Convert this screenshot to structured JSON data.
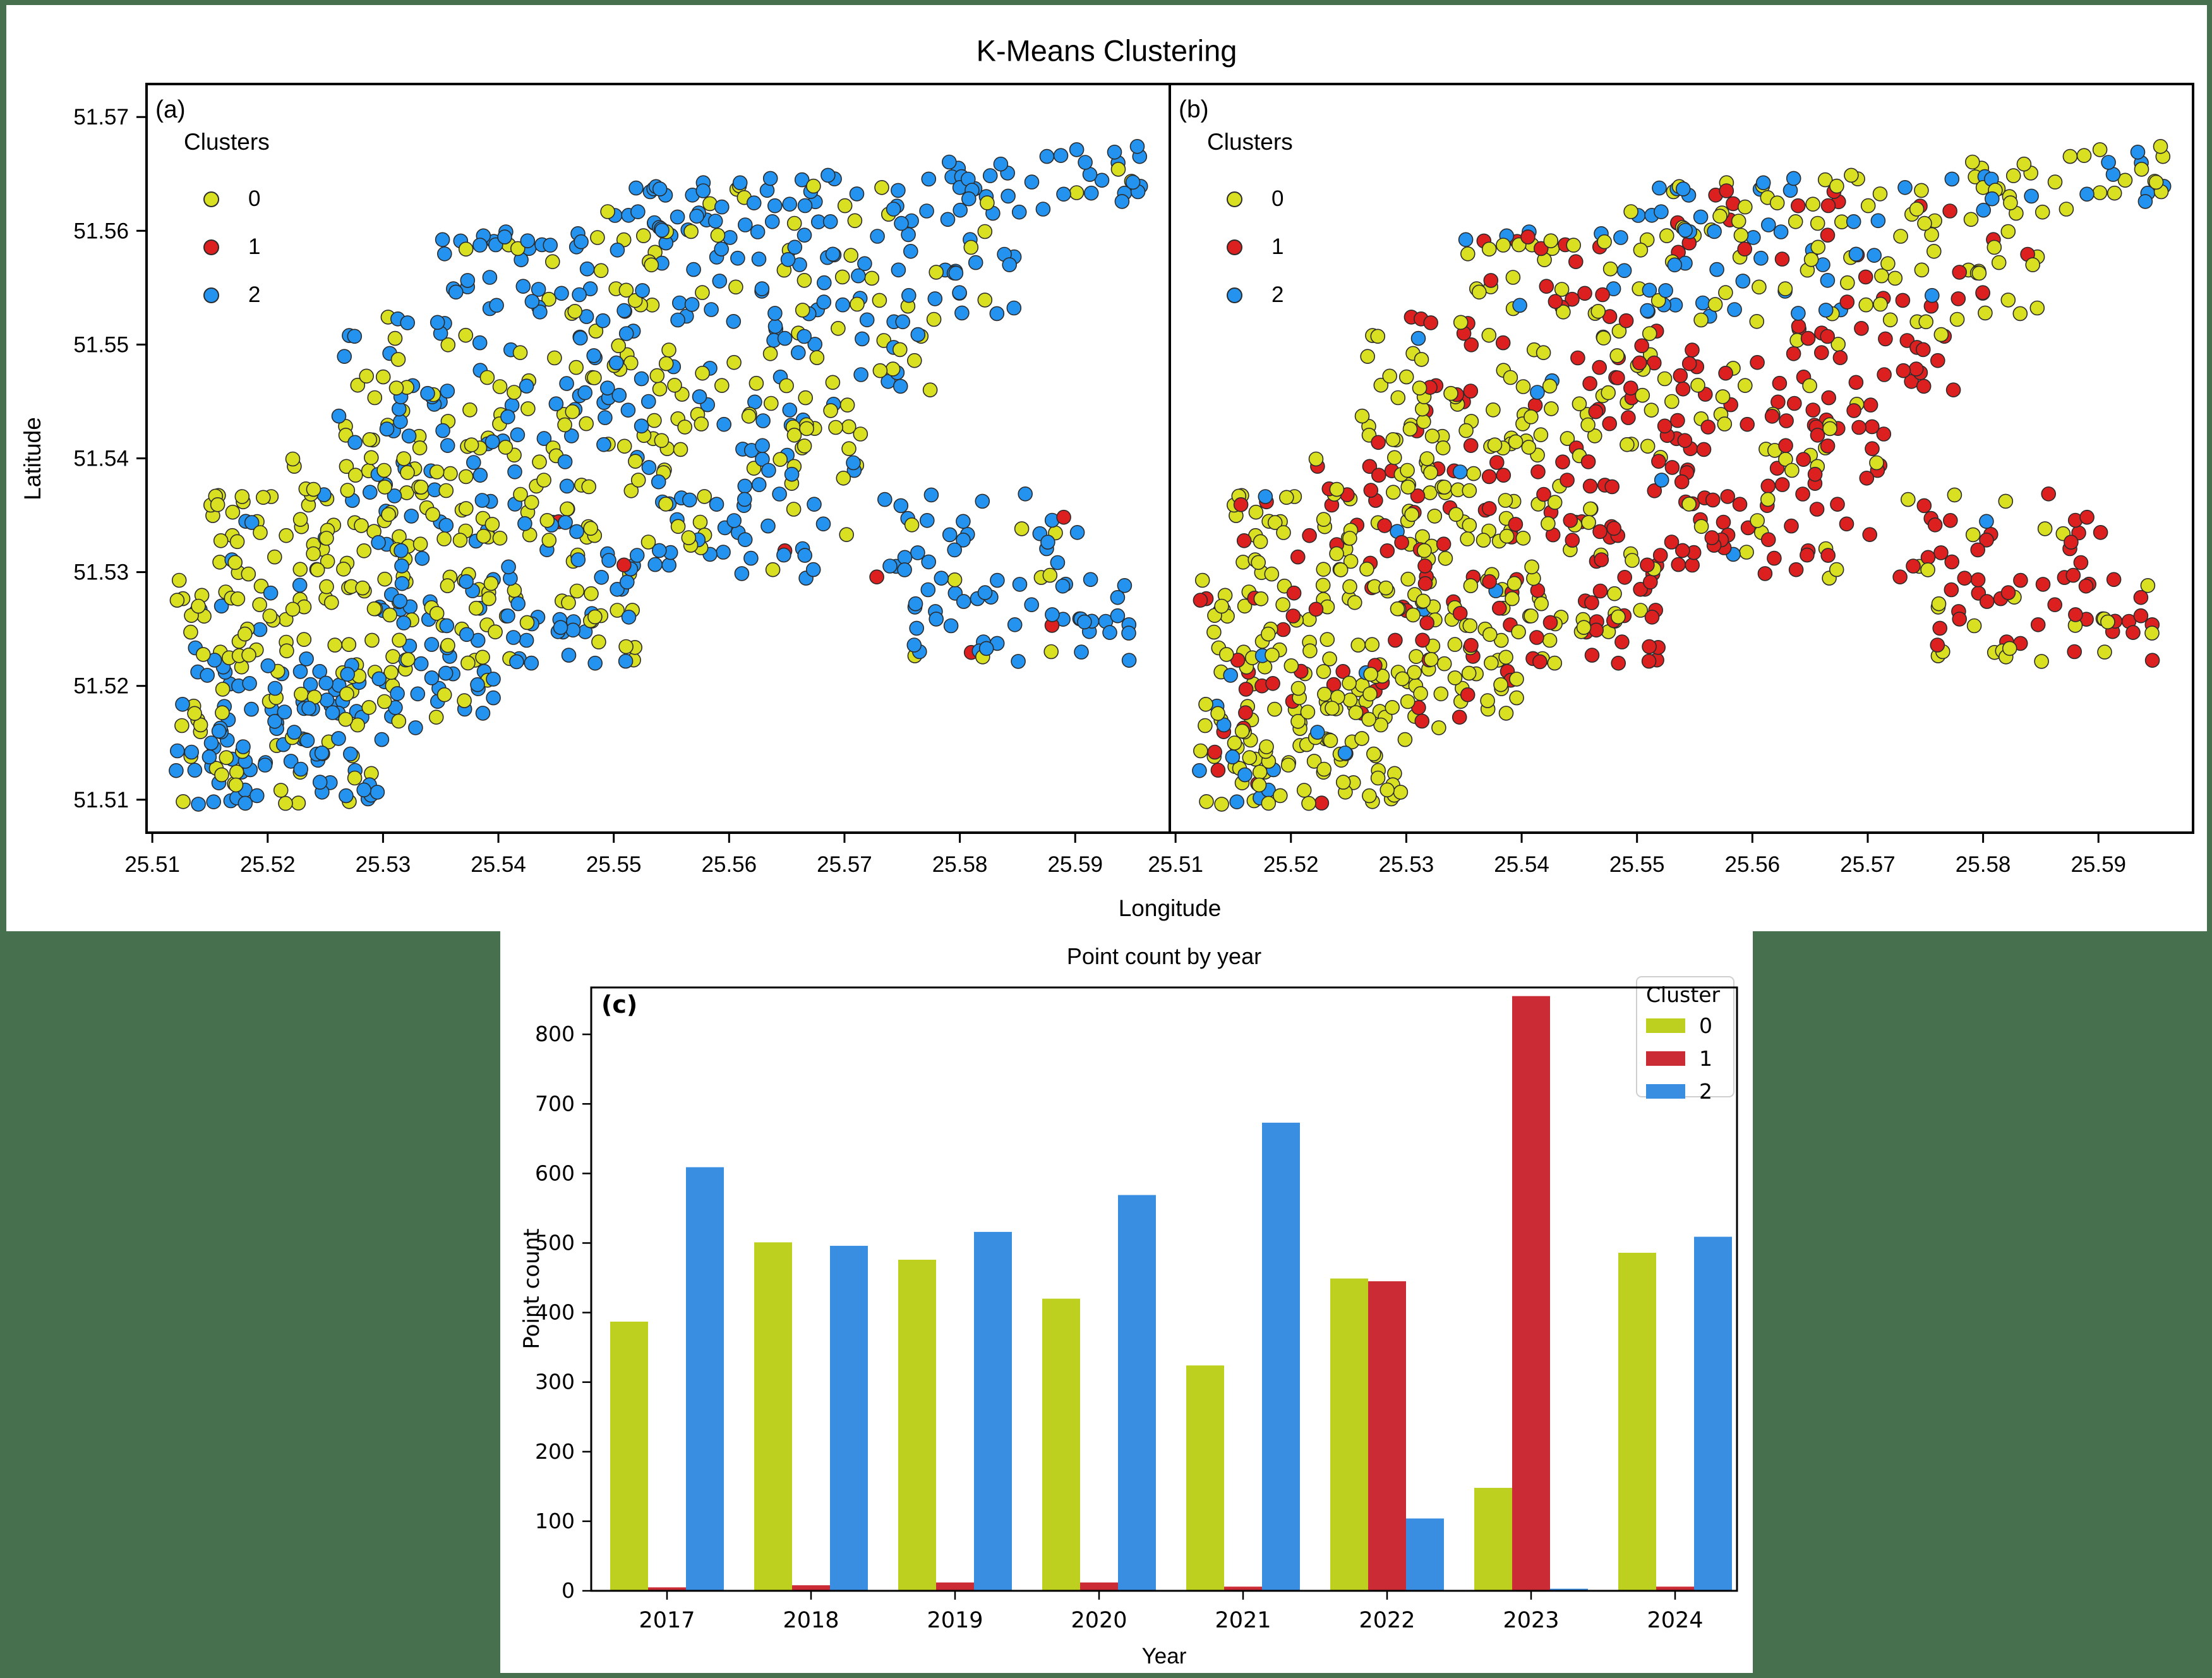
{
  "canvas": {
    "background": "#47714e",
    "figure_background": "#ffffff"
  },
  "cluster_palette": {
    "scatter": {
      "0": "#d9e021",
      "1": "#dc1f1f",
      "2": "#2493ef"
    },
    "bars": {
      "0": "#bdd01f",
      "1": "#cb2b34",
      "2": "#3a8ee2"
    },
    "marker_edge": "#2b2b2b"
  },
  "figure_top": {
    "title": "K-Means Clustering",
    "xlabel": "Longitude",
    "ylabel": "Latitude",
    "legend_title": "Clusters",
    "legend_items": [
      "0",
      "1",
      "2"
    ],
    "panel_a_label": "(a)",
    "panel_b_label": "(b)"
  },
  "figure_bottom": {
    "title": "Point count by year",
    "panel_label": "(c)",
    "xlabel": "Year",
    "ylabel": "Point count",
    "legend_title": "Cluster",
    "legend_items": [
      "0",
      "1",
      "2"
    ]
  },
  "chart_data": [
    {
      "id": "a",
      "type": "scatter",
      "panel_label": "(a)",
      "xlabel": "Longitude",
      "ylabel": "Latitude",
      "legend_title": "Clusters",
      "cluster_labels": [
        "0",
        "1",
        "2"
      ],
      "xlim": [
        25.5095,
        25.5982
      ],
      "ylim": [
        51.5071,
        51.5729
      ],
      "xticks": [
        25.51,
        25.52,
        25.53,
        25.54,
        25.55,
        25.56,
        25.57,
        25.58,
        25.59
      ],
      "yticks": [
        51.51,
        51.52,
        51.53,
        51.54,
        51.55,
        51.56,
        51.57
      ],
      "marker_radius_px": 11,
      "points_spec": {
        "seed": 42,
        "regions": [
          {
            "n": 70,
            "lon": [
              25.512,
              25.53
            ],
            "lat": [
              51.5095,
              51.516
            ]
          },
          {
            "n": 95,
            "lon": [
              25.512,
              25.54
            ],
            "lat": [
              51.516,
              51.522
            ]
          },
          {
            "n": 150,
            "lon": [
              25.512,
              25.552
            ],
            "lat": [
              51.522,
              51.53
            ]
          },
          {
            "n": 135,
            "lon": [
              25.515,
              25.56
            ],
            "lat": [
              51.53,
              51.537
            ]
          },
          {
            "n": 150,
            "lon": [
              25.52,
              25.572
            ],
            "lat": [
              51.537,
              51.545
            ]
          },
          {
            "n": 110,
            "lon": [
              25.526,
              25.578
            ],
            "lat": [
              51.545,
              51.5525
            ]
          },
          {
            "n": 120,
            "lon": [
              25.535,
              25.585
            ],
            "lat": [
              51.5525,
              51.56
            ]
          },
          {
            "n": 110,
            "lon": [
              25.548,
              25.596
            ],
            "lat": [
              51.558,
              51.5635
            ],
            "lat_slope": 0.0045
          },
          {
            "n": 45,
            "lon": [
              25.576,
              25.595
            ],
            "lat": [
              51.522,
              51.529
            ]
          },
          {
            "n": 55,
            "lon": [
              25.56,
              25.592
            ],
            "lat": [
              51.529,
              51.537
            ]
          }
        ]
      },
      "label_seed": 7,
      "cluster_rules": [
        {
          "lat": [
            51.5595,
            99
          ],
          "weights": [
            0.22,
            0.02,
            0.76
          ]
        },
        {
          "lat": [
            51.5505,
            51.5595
          ],
          "weights": [
            0.3,
            0.0,
            0.7
          ]
        },
        {
          "lon": [
            25.558,
            99
          ],
          "lat": [
            0,
            51.537
          ],
          "weights": [
            0.14,
            0.06,
            0.8
          ]
        },
        {
          "lat": [
            0,
            51.518
          ],
          "weights": [
            0.3,
            0.0,
            0.7
          ]
        },
        {
          "lat": [
            51.518,
            51.5225
          ],
          "weights": [
            0.5,
            0.005,
            0.495
          ]
        },
        {
          "lon": [
            0,
            25.53
          ],
          "lat": [
            51.5225,
            51.545
          ],
          "weights": [
            0.8,
            0.0,
            0.2
          ]
        },
        {
          "weights": [
            0.61,
            0.005,
            0.385
          ]
        }
      ]
    },
    {
      "id": "b",
      "type": "scatter",
      "panel_label": "(b)",
      "xlabel": "Longitude",
      "ylabel": "Latitude",
      "legend_title": "Clusters",
      "cluster_labels": [
        "0",
        "1",
        "2"
      ],
      "xlim": [
        25.5095,
        25.5982
      ],
      "ylim": [
        51.5071,
        51.5729
      ],
      "xticks": [
        25.51,
        25.52,
        25.53,
        25.54,
        25.55,
        25.56,
        25.57,
        25.58,
        25.59
      ],
      "yticks": [
        51.51,
        51.52,
        51.53,
        51.54,
        51.55,
        51.56,
        51.57
      ],
      "marker_radius_px": 11,
      "points_from": "a",
      "label_seed": 13,
      "cluster_rules": [
        {
          "lat": [
            51.5595,
            99
          ],
          "weights": [
            0.6,
            0.12,
            0.28
          ]
        },
        {
          "lon": [
            25.544,
            25.567
          ],
          "lat": [
            51.5525,
            51.5595
          ],
          "weights": [
            0.33,
            0.14,
            0.53
          ]
        },
        {
          "lat": [
            51.5505,
            51.5595
          ],
          "weights": [
            0.6,
            0.3,
            0.1
          ]
        },
        {
          "lon": [
            25.545,
            99
          ],
          "lat": [
            0,
            51.5505
          ],
          "weights": [
            0.26,
            0.72,
            0.02
          ]
        },
        {
          "lon": [
            25.52,
            25.545
          ],
          "lat": [
            51.528,
            51.542
          ],
          "weights": [
            0.58,
            0.4,
            0.02
          ]
        },
        {
          "lon": [
            0,
            25.525
          ],
          "lat": [
            0,
            51.517
          ],
          "weights": [
            0.7,
            0.06,
            0.24
          ]
        },
        {
          "weights": [
            0.78,
            0.19,
            0.03
          ]
        }
      ]
    },
    {
      "id": "c",
      "type": "bar",
      "panel_label": "(c)",
      "title": "Point count by year",
      "xlabel": "Year",
      "ylabel": "Point count",
      "legend_title": "Cluster",
      "legend_position": "upper right",
      "categories": [
        "2017",
        "2018",
        "2019",
        "2020",
        "2021",
        "2022",
        "2023",
        "2024"
      ],
      "series": [
        {
          "name": "0",
          "values": [
            387,
            501,
            476,
            420,
            324,
            449,
            148,
            486
          ]
        },
        {
          "name": "1",
          "values": [
            5,
            8,
            12,
            12,
            6,
            445,
            855,
            6
          ]
        },
        {
          "name": "2",
          "values": [
            609,
            496,
            516,
            569,
            673,
            104,
            3,
            509
          ]
        }
      ],
      "yticks": [
        0,
        100,
        200,
        300,
        400,
        500,
        600,
        700,
        800
      ],
      "ylim": [
        0,
        867
      ],
      "grid": false
    }
  ]
}
